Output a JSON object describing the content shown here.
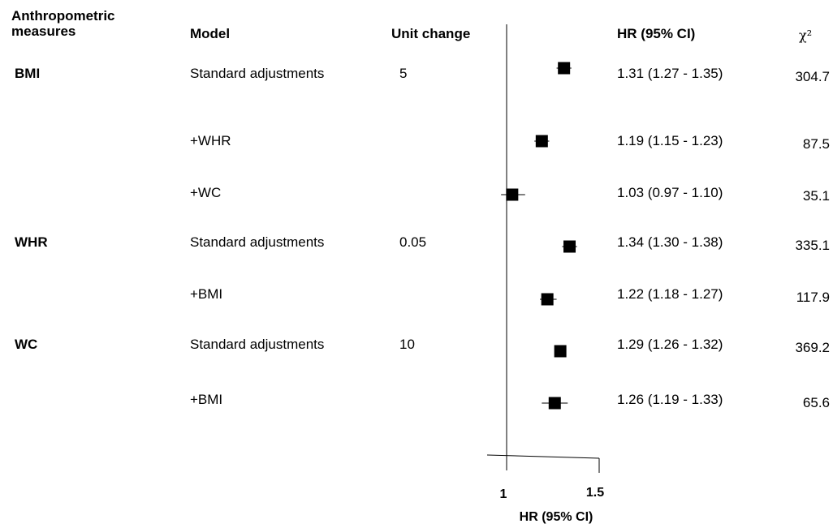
{
  "headers": {
    "measure_line1": "Anthropometric",
    "measure_line2": "measures",
    "model": "Model",
    "unit_change": "Unit change",
    "hr": "HR (95% CI)",
    "chi": "χ²"
  },
  "rows": [
    {
      "measure": "BMI",
      "model": "Standard adjustments",
      "unit": "5",
      "hr_text": "1.31 (1.27 - 1.35)",
      "chi": "304.7"
    },
    {
      "measure": "",
      "model": "+WHR",
      "unit": "",
      "hr_text": "1.19 (1.15 - 1.23)",
      "chi": "87.5"
    },
    {
      "measure": "",
      "model": "+WC",
      "unit": "",
      "hr_text": "1.03 (0.97 - 1.10)",
      "chi": "35.1"
    },
    {
      "measure": "WHR",
      "model": "Standard adjustments",
      "unit": "0.05",
      "hr_text": "1.34 (1.30 - 1.38)",
      "chi": "335.1"
    },
    {
      "measure": "",
      "model": "+BMI",
      "unit": "",
      "hr_text": "1.22 (1.18 - 1.27)",
      "chi": "117.9"
    },
    {
      "measure": "WC",
      "model": "Standard adjustments",
      "unit": "10",
      "hr_text": "1.29 (1.26 - 1.32)",
      "chi": "369.2"
    },
    {
      "measure": "",
      "model": "+BMI",
      "unit": "",
      "hr_text": "1.26 (1.19 - 1.33)",
      "chi": "65.6"
    }
  ],
  "chart_data": {
    "type": "scatter",
    "subtype": "forest-plot",
    "xlabel": "HR (95% CI)",
    "xticks": [
      "1",
      "1.5"
    ],
    "xlim": [
      1,
      1.5
    ],
    "reference_line": 1,
    "points": [
      {
        "hr": 1.31,
        "lo": 1.27,
        "hi": 1.35
      },
      {
        "hr": 1.19,
        "lo": 1.15,
        "hi": 1.23
      },
      {
        "hr": 1.03,
        "lo": 0.97,
        "hi": 1.1
      },
      {
        "hr": 1.34,
        "lo": 1.3,
        "hi": 1.38
      },
      {
        "hr": 1.22,
        "lo": 1.18,
        "hi": 1.27
      },
      {
        "hr": 1.29,
        "lo": 1.26,
        "hi": 1.32
      },
      {
        "hr": 1.26,
        "lo": 1.19,
        "hi": 1.33
      }
    ]
  }
}
